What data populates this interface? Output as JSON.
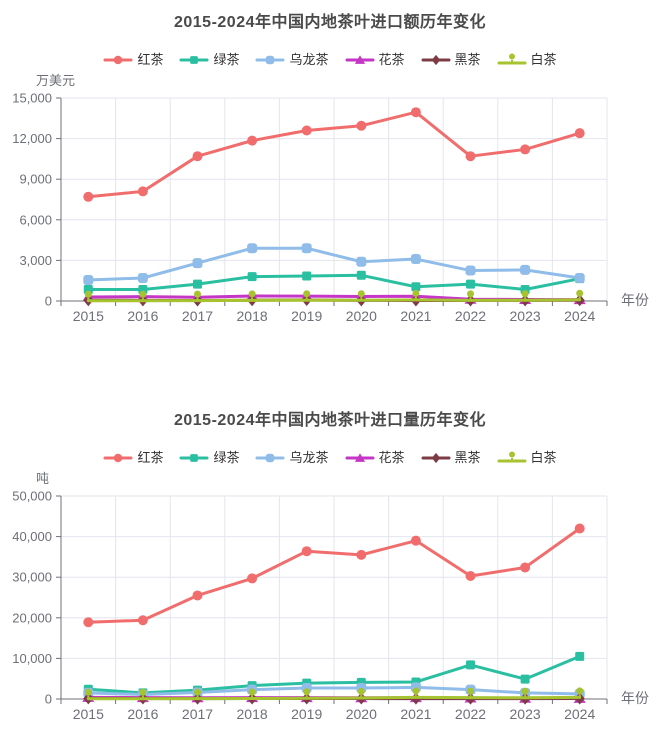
{
  "page": {
    "background": "#ffffff",
    "text_color": "#4a4a4a",
    "axis_color": "#6E7079",
    "grid_color": "#E2E6ED"
  },
  "chart_data": [
    {
      "type": "line",
      "title": "2015-2024年中国内地茶叶进口额历年变化",
      "unit": "万美元",
      "xlabel": "年份",
      "categories": [
        "2015",
        "2016",
        "2017",
        "2018",
        "2019",
        "2020",
        "2021",
        "2022",
        "2023",
        "2024"
      ],
      "ylim": [
        0,
        15000
      ],
      "ytick_step": 3000,
      "grid": true,
      "legend_position": "top",
      "series": [
        {
          "name": "红茶",
          "color": "#F16D6D",
          "marker": "circle",
          "values": [
            7700,
            8100,
            10700,
            11850,
            12600,
            12950,
            13950,
            10700,
            11200,
            12400
          ]
        },
        {
          "name": "绿茶",
          "color": "#2BBFA2",
          "marker": "square",
          "values": [
            850,
            850,
            1250,
            1800,
            1850,
            1900,
            1050,
            1250,
            850,
            1650
          ]
        },
        {
          "name": "乌龙茶",
          "color": "#8FBCE8",
          "marker": "roundrect",
          "values": [
            1550,
            1700,
            2800,
            3900,
            3900,
            2900,
            3100,
            2250,
            2300,
            1700
          ]
        },
        {
          "name": "花茶",
          "color": "#C636C6",
          "marker": "triangle",
          "values": [
            300,
            320,
            280,
            370,
            360,
            330,
            350,
            130,
            110,
            100
          ]
        },
        {
          "name": "黑茶",
          "color": "#7D3C45",
          "marker": "diamond",
          "values": [
            60,
            50,
            40,
            60,
            70,
            50,
            40,
            40,
            50,
            60
          ]
        },
        {
          "name": "白茶",
          "color": "#A7C32F",
          "marker": "pin",
          "values": [
            20,
            20,
            30,
            50,
            60,
            60,
            80,
            50,
            60,
            90
          ]
        }
      ]
    },
    {
      "type": "line",
      "title": "2015-2024年中国内地茶叶进口量历年变化",
      "unit": "吨",
      "xlabel": "年份",
      "categories": [
        "2015",
        "2016",
        "2017",
        "2018",
        "2019",
        "2020",
        "2021",
        "2022",
        "2023",
        "2024"
      ],
      "ylim": [
        0,
        50000
      ],
      "ytick_step": 10000,
      "grid": true,
      "legend_position": "top",
      "series": [
        {
          "name": "红茶",
          "color": "#F16D6D",
          "marker": "circle",
          "values": [
            18900,
            19400,
            25500,
            29700,
            36400,
            35500,
            39000,
            30300,
            32400,
            42000
          ]
        },
        {
          "name": "绿茶",
          "color": "#2BBFA2",
          "marker": "square",
          "values": [
            2400,
            1500,
            2200,
            3300,
            3900,
            4100,
            4200,
            8400,
            4900,
            10500
          ]
        },
        {
          "name": "乌龙茶",
          "color": "#8FBCE8",
          "marker": "roundrect",
          "values": [
            1500,
            1100,
            1600,
            2300,
            2700,
            2700,
            2850,
            2300,
            1500,
            1250
          ]
        },
        {
          "name": "花茶",
          "color": "#C636C6",
          "marker": "triangle",
          "values": [
            400,
            350,
            300,
            350,
            330,
            300,
            350,
            250,
            200,
            150
          ]
        },
        {
          "name": "黑茶",
          "color": "#7D3C45",
          "marker": "diamond",
          "values": [
            150,
            120,
            100,
            120,
            130,
            110,
            100,
            90,
            100,
            110
          ]
        },
        {
          "name": "白茶",
          "color": "#A7C32F",
          "marker": "pin",
          "values": [
            60,
            70,
            90,
            130,
            200,
            250,
            400,
            350,
            300,
            400
          ]
        }
      ]
    }
  ]
}
